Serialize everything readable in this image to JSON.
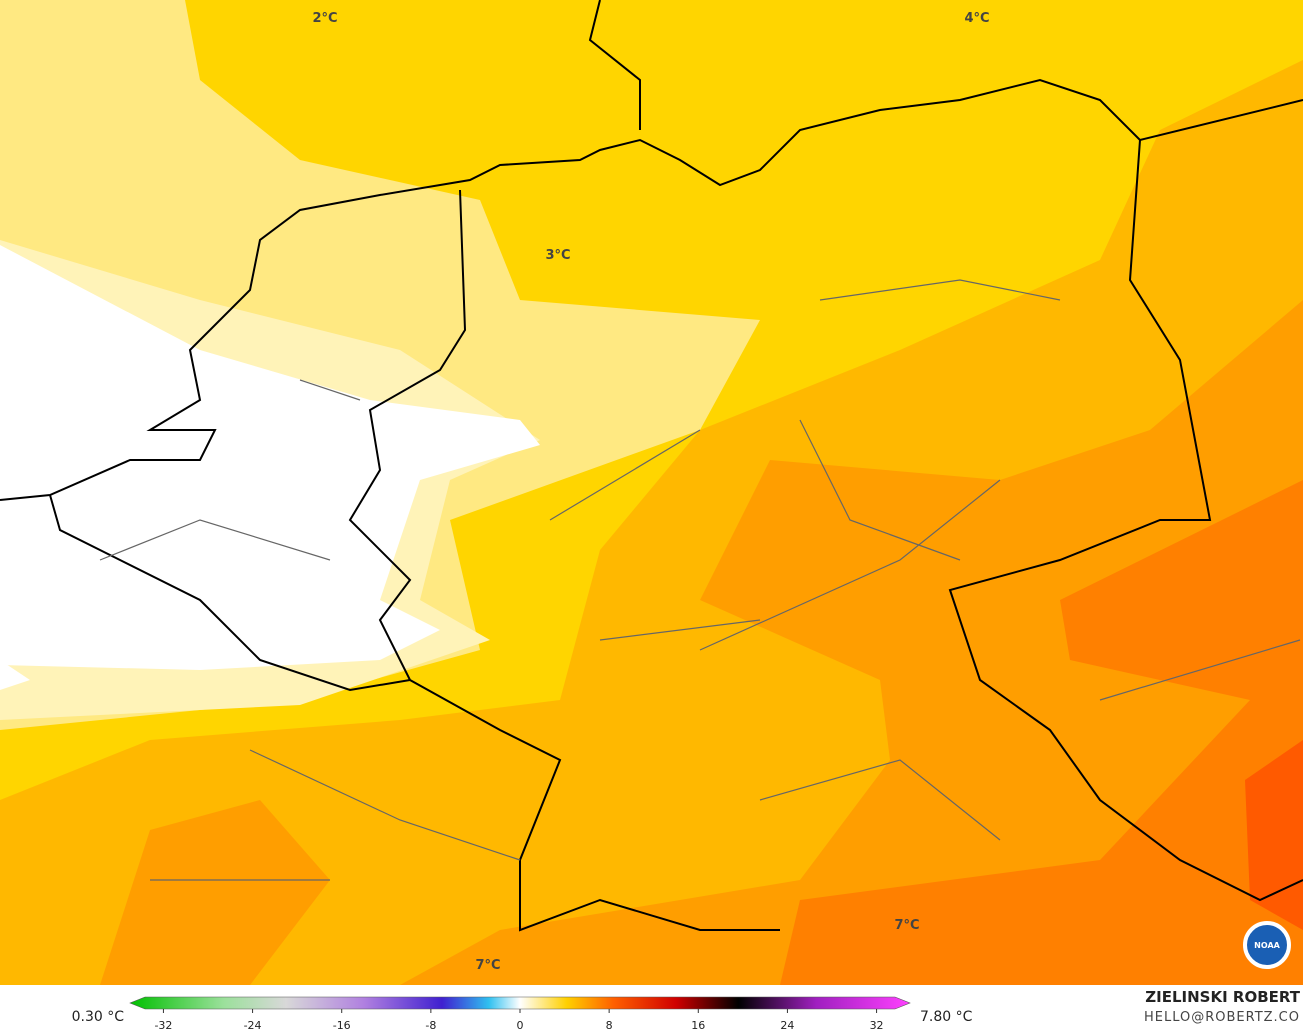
{
  "map": {
    "labels": [
      "2°C",
      "4°C",
      "3°C",
      "7°C",
      "7°C"
    ]
  },
  "colorbar": {
    "min_label": "0.30 °C",
    "max_label": "7.80 °C",
    "lim": [
      -35,
      35
    ],
    "ticks": [
      -32,
      -24,
      -16,
      -8,
      0,
      8,
      16,
      24,
      32
    ]
  },
  "credit": {
    "name": "ZIELINSKI ROBERT",
    "contact": "HELLO@ROBERTZ.CO",
    "logo": "NOAA"
  }
}
